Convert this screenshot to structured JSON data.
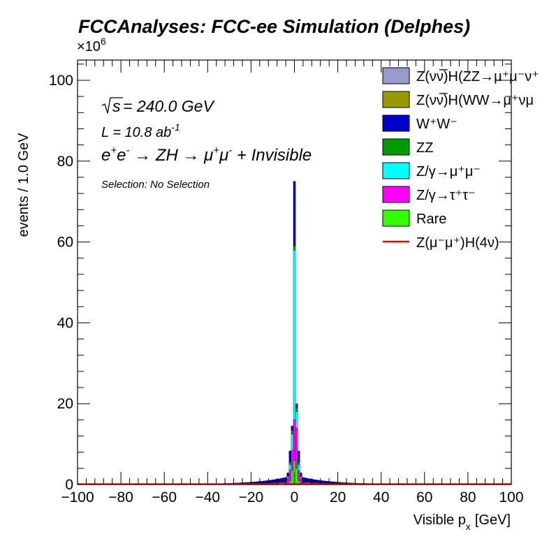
{
  "chart_data": {
    "type": "bar",
    "title": "FCCAnalyses: FCC-ee Simulation (Delphes)",
    "xlabel": "Visible p_x [GeV]",
    "xlabel_main": "Visible p",
    "xlabel_sub": "x",
    "xlabel_unit": "[GeV]",
    "ylabel": "events / 1.0 GeV",
    "y_multiplier_base": "×10",
    "y_multiplier_exp": "6",
    "xlim": [
      -100,
      100
    ],
    "ylim": [
      0,
      105
    ],
    "xticks": [
      -100,
      -80,
      -60,
      -40,
      -20,
      0,
      20,
      40,
      60,
      80,
      100
    ],
    "xtick_labels": [
      "−100",
      "−80",
      "−60",
      "−40",
      "−20",
      "0",
      "20",
      "40",
      "60",
      "80",
      "100"
    ],
    "yticks": [
      0,
      20,
      40,
      60,
      80,
      100
    ],
    "ytick_labels": [
      "0",
      "20",
      "40",
      "60",
      "80",
      "100"
    ],
    "stacked": true,
    "bin_width_gev": 1.0,
    "annotations": {
      "sqrt_s": "s",
      "energy": " = 240.0 GeV",
      "lumi": "L = 10.8 ab",
      "lumi_exp": "-1",
      "process_a": "e",
      "process_b": "e",
      "process_c": " → ZH → μ",
      "process_d": "μ",
      "process_e": " + Invisible",
      "selection": "Selection: No Selection"
    },
    "legend_position": "top-right",
    "legend": [
      {
        "label": "Z(νν̅)H(ZZ→μ⁺μ⁻ν⁺",
        "color": "#9999cc",
        "kind": "box"
      },
      {
        "label": "Z(νν̅)H(WW→μ⁺νμ",
        "color": "#999900",
        "kind": "box"
      },
      {
        "label": "W⁺W⁻",
        "color": "#0000cc",
        "kind": "box"
      },
      {
        "label": "ZZ",
        "color": "#009900",
        "kind": "box"
      },
      {
        "label": "Z/γ→μ⁺μ⁻",
        "color": "#00ffff",
        "kind": "box"
      },
      {
        "label": "Z/γ→τ⁺τ⁻",
        "color": "#ff00ff",
        "kind": "box"
      },
      {
        "label": "Rare",
        "color": "#33ff00",
        "kind": "box"
      },
      {
        "label": "Z(μ⁻μ⁺)H(4ν)",
        "color": "#ff0000",
        "kind": "line"
      }
    ],
    "series": [
      {
        "name": "Rare",
        "color": "#33ff00"
      },
      {
        "name": "Z/γ→τ⁺τ⁻",
        "color": "#ff00ff"
      },
      {
        "name": "Z/γ→μ⁺μ⁻",
        "color": "#00ffff"
      },
      {
        "name": "ZZ",
        "color": "#009900"
      },
      {
        "name": "W⁺W⁻",
        "color": "#0000cc"
      },
      {
        "name": "Z(νν̅)H(WW→μ⁺νμ",
        "color": "#999900"
      },
      {
        "name": "Z(νν̅)H(ZZ→μ⁺μ⁻ν⁺",
        "color": "#9999cc"
      }
    ],
    "signal": {
      "name": "Z(μ⁻μ⁺)H(4ν)",
      "color": "#ff0000"
    },
    "center_bins": [
      {
        "x": -3,
        "rare": 0.3,
        "tautau": 1.2,
        "mumu": 0.4,
        "zz": 0.2,
        "ww": 0.8,
        "total": 2.9
      },
      {
        "x": -2,
        "rare": 1.0,
        "tautau": 2.5,
        "mumu": 1.5,
        "zz": 0.6,
        "ww": 2.7,
        "total": 8.3
      },
      {
        "x": -1,
        "rare": 3.5,
        "tautau": 5.0,
        "mumu": 4.0,
        "zz": 0.9,
        "ww": 1.1,
        "total": 14.5
      },
      {
        "x": 0,
        "rare": 6.0,
        "tautau": 10.0,
        "mumu": 42.0,
        "zz": 1.0,
        "ww": 16.0,
        "total": 75.0
      },
      {
        "x": 1,
        "rare": 4.0,
        "tautau": 10.0,
        "mumu": 4.0,
        "zz": 0.9,
        "ww": 1.1,
        "total": 20.0
      },
      {
        "x": 2,
        "rare": 1.0,
        "tautau": 2.5,
        "mumu": 1.5,
        "zz": 0.6,
        "ww": 2.7,
        "total": 8.3
      },
      {
        "x": 3,
        "rare": 0.3,
        "tautau": 1.2,
        "mumu": 0.4,
        "zz": 0.2,
        "ww": 0.8,
        "total": 2.9
      }
    ]
  }
}
